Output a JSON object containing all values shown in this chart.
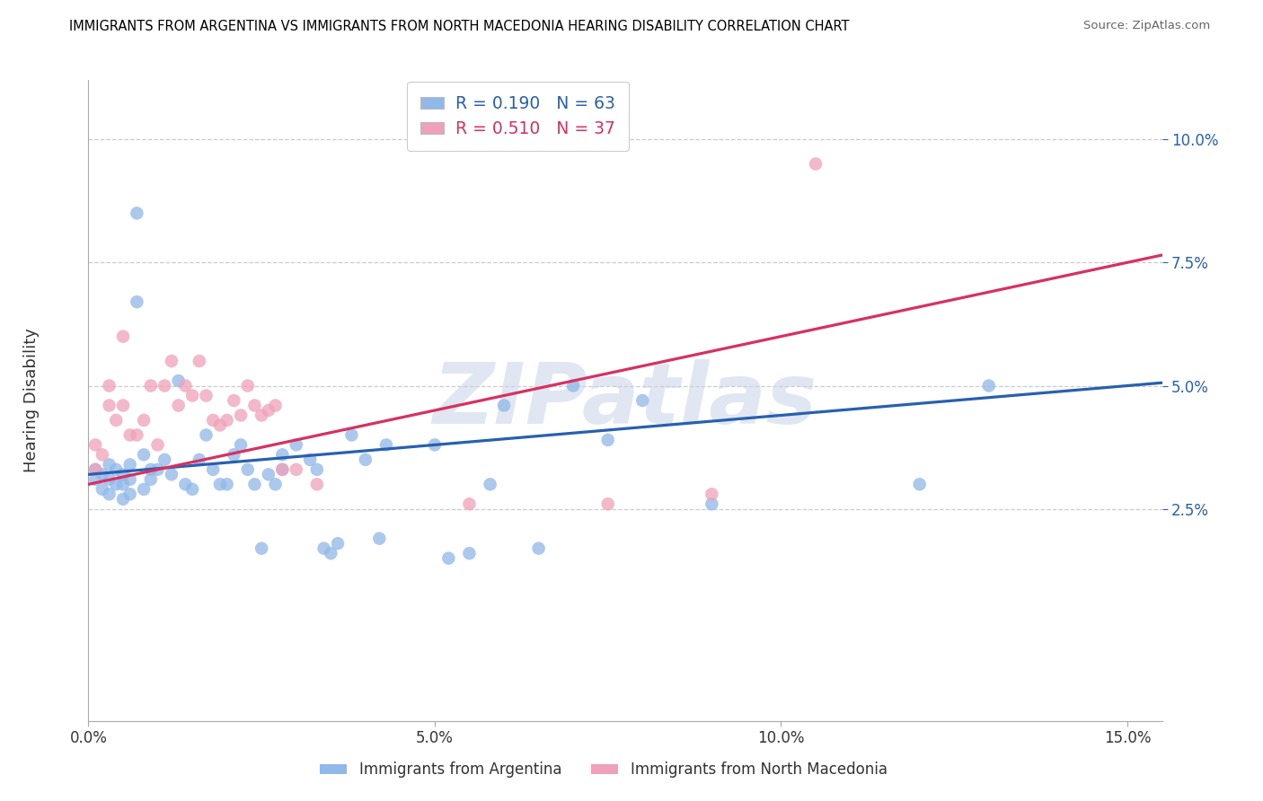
{
  "title": "IMMIGRANTS FROM ARGENTINA VS IMMIGRANTS FROM NORTH MACEDONIA HEARING DISABILITY CORRELATION CHART",
  "source": "Source: ZipAtlas.com",
  "ylabel": "Hearing Disability",
  "xlabel_ticks": [
    "0.0%",
    "5.0%",
    "10.0%",
    "15.0%"
  ],
  "xlabel_vals": [
    0.0,
    0.05,
    0.1,
    0.15
  ],
  "ylabel_ticks": [
    "2.5%",
    "5.0%",
    "7.5%",
    "10.0%"
  ],
  "ylabel_vals": [
    0.025,
    0.05,
    0.075,
    0.1
  ],
  "xlim": [
    0.0,
    0.155
  ],
  "ylim": [
    -0.018,
    0.112
  ],
  "r_argentina": 0.19,
  "n_argentina": 63,
  "r_macedonia": 0.51,
  "n_macedonia": 37,
  "color_argentina": "#90b8e8",
  "color_macedonia": "#f0a0b8",
  "line_color_argentina": "#2860b0",
  "line_color_macedonia": "#d83060",
  "watermark_color": "#c8d4e8",
  "watermark": "ZIPatlas",
  "legend_label_argentina": "Immigrants from Argentina",
  "legend_label_macedonia": "Immigrants from North Macedonia",
  "argentina_x": [
    0.001,
    0.001,
    0.002,
    0.002,
    0.003,
    0.003,
    0.003,
    0.004,
    0.004,
    0.005,
    0.005,
    0.005,
    0.006,
    0.006,
    0.006,
    0.007,
    0.007,
    0.008,
    0.008,
    0.009,
    0.009,
    0.01,
    0.011,
    0.012,
    0.013,
    0.014,
    0.015,
    0.016,
    0.017,
    0.018,
    0.019,
    0.02,
    0.021,
    0.022,
    0.023,
    0.024,
    0.025,
    0.026,
    0.027,
    0.028,
    0.028,
    0.03,
    0.032,
    0.033,
    0.034,
    0.035,
    0.036,
    0.038,
    0.04,
    0.042,
    0.043,
    0.05,
    0.052,
    0.055,
    0.058,
    0.06,
    0.065,
    0.07,
    0.075,
    0.08,
    0.09,
    0.12,
    0.13
  ],
  "argentina_y": [
    0.031,
    0.033,
    0.029,
    0.032,
    0.028,
    0.031,
    0.034,
    0.03,
    0.033,
    0.03,
    0.032,
    0.027,
    0.034,
    0.028,
    0.031,
    0.085,
    0.067,
    0.036,
    0.029,
    0.033,
    0.031,
    0.033,
    0.035,
    0.032,
    0.051,
    0.03,
    0.029,
    0.035,
    0.04,
    0.033,
    0.03,
    0.03,
    0.036,
    0.038,
    0.033,
    0.03,
    0.017,
    0.032,
    0.03,
    0.033,
    0.036,
    0.038,
    0.035,
    0.033,
    0.017,
    0.016,
    0.018,
    0.04,
    0.035,
    0.019,
    0.038,
    0.038,
    0.015,
    0.016,
    0.03,
    0.046,
    0.017,
    0.05,
    0.039,
    0.047,
    0.026,
    0.03,
    0.05
  ],
  "macedonia_x": [
    0.001,
    0.001,
    0.002,
    0.003,
    0.003,
    0.004,
    0.005,
    0.005,
    0.006,
    0.007,
    0.008,
    0.009,
    0.01,
    0.011,
    0.012,
    0.013,
    0.014,
    0.015,
    0.016,
    0.017,
    0.018,
    0.019,
    0.02,
    0.021,
    0.022,
    0.023,
    0.024,
    0.025,
    0.026,
    0.027,
    0.028,
    0.03,
    0.033,
    0.055,
    0.075,
    0.09,
    0.105
  ],
  "macedonia_y": [
    0.033,
    0.038,
    0.036,
    0.05,
    0.046,
    0.043,
    0.046,
    0.06,
    0.04,
    0.04,
    0.043,
    0.05,
    0.038,
    0.05,
    0.055,
    0.046,
    0.05,
    0.048,
    0.055,
    0.048,
    0.043,
    0.042,
    0.043,
    0.047,
    0.044,
    0.05,
    0.046,
    0.044,
    0.045,
    0.046,
    0.033,
    0.033,
    0.03,
    0.026,
    0.026,
    0.028,
    0.095
  ]
}
